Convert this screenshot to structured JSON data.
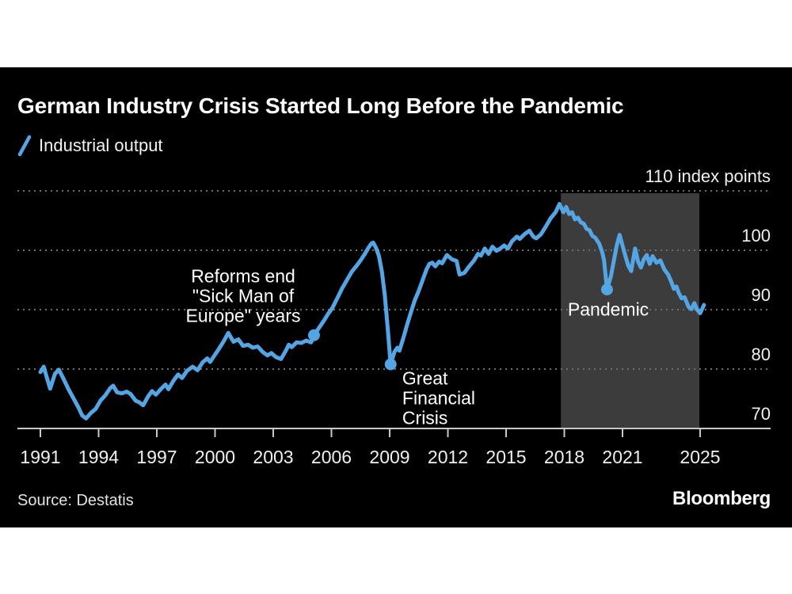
{
  "header": {
    "title": "German Industry Crisis Started Long Before the Pandemic",
    "legend_label": "Industrial output"
  },
  "footer": {
    "source": "Source: Destatis",
    "logo": "Bloomberg"
  },
  "colors": {
    "background": "#000000",
    "page": "#ffffff",
    "line": "#54a5e4",
    "grid": "#6e6e6e",
    "axis": "#c9c9c9",
    "tick_label": "#f0f0f0",
    "annotation": "#ffffff",
    "shaded_band": "#3c3c3c"
  },
  "chart_data": {
    "type": "line",
    "title": "German Industry Crisis Started Long Before the Pandemic",
    "ylabel": "index points",
    "ylim": [
      70,
      110
    ],
    "xlim": [
      1991,
      2025.3
    ],
    "grid": "dotted-horizontal",
    "legend_position": "top-left",
    "x_ticks": [
      {
        "year": 1991,
        "label": "1991"
      },
      {
        "year": 1994,
        "label": "1994"
      },
      {
        "year": 1997,
        "label": "1997"
      },
      {
        "year": 2000,
        "label": "2000"
      },
      {
        "year": 2003,
        "label": "2003"
      },
      {
        "year": 2006,
        "label": "2006"
      },
      {
        "year": 2009,
        "label": "2009"
      },
      {
        "year": 2012,
        "label": "2012"
      },
      {
        "year": 2015,
        "label": "2015"
      },
      {
        "year": 2018,
        "label": "2018"
      },
      {
        "year": 2021,
        "label": "2021"
      },
      {
        "year": 2025,
        "label": "2025"
      }
    ],
    "y_ticks": [
      {
        "value": 110,
        "label": "110 index points"
      },
      {
        "value": 100,
        "label": "100"
      },
      {
        "value": 90,
        "label": "90"
      },
      {
        "value": 80,
        "label": "80"
      },
      {
        "value": 70,
        "label": "70"
      }
    ],
    "y_gridline_values": [
      110,
      100,
      90,
      80
    ],
    "baseline_value": 70,
    "shaded_region": {
      "x_start_year": 2017.82,
      "x_end_year": 2024.96
    },
    "annotations": [
      {
        "id": "reforms",
        "align": "middle",
        "x_year": 2001.45,
        "y_value": 95.7,
        "lines": [
          "Reforms end",
          "\"Sick Man of",
          "Europe\" years"
        ]
      },
      {
        "id": "gfc",
        "align": "start",
        "x_year": 2009.65,
        "y_value": 78.5,
        "lines": [
          "Great",
          "Financial",
          "Crisis"
        ]
      },
      {
        "id": "pandemic",
        "align": "start",
        "x_year": 2018.18,
        "y_value": 90.1,
        "lines": [
          "Pandemic"
        ]
      }
    ],
    "markers": [
      {
        "x_year": 2005.1,
        "y_value": 85.7,
        "name": "reforms-marker-dot"
      },
      {
        "x_year": 2009.05,
        "y_value": 80.8,
        "name": "gfc-marker-dot"
      },
      {
        "x_year": 2020.2,
        "y_value": 93.4,
        "name": "pandemic-marker-dot"
      }
    ],
    "series": [
      {
        "name": "Industrial output",
        "points": [
          [
            1991.0,
            79.5
          ],
          [
            1991.17,
            80.4
          ],
          [
            1991.33,
            78.6
          ],
          [
            1991.5,
            76.7
          ],
          [
            1991.75,
            79.2
          ],
          [
            1991.95,
            79.9
          ],
          [
            1992.2,
            78.3
          ],
          [
            1992.45,
            76.6
          ],
          [
            1992.7,
            75.1
          ],
          [
            1992.95,
            73.6
          ],
          [
            1993.15,
            72.2
          ],
          [
            1993.35,
            71.7
          ],
          [
            1993.6,
            72.6
          ],
          [
            1993.85,
            73.3
          ],
          [
            1994.1,
            74.7
          ],
          [
            1994.35,
            75.6
          ],
          [
            1994.6,
            76.8
          ],
          [
            1994.75,
            77.2
          ],
          [
            1994.95,
            76.1
          ],
          [
            1995.2,
            75.9
          ],
          [
            1995.45,
            76.2
          ],
          [
            1995.65,
            75.8
          ],
          [
            1995.9,
            74.7
          ],
          [
            1996.1,
            74.4
          ],
          [
            1996.3,
            73.9
          ],
          [
            1996.55,
            75.4
          ],
          [
            1996.75,
            76.3
          ],
          [
            1996.95,
            75.7
          ],
          [
            1997.2,
            76.6
          ],
          [
            1997.45,
            77.4
          ],
          [
            1997.6,
            76.6
          ],
          [
            1997.85,
            78.0
          ],
          [
            1998.1,
            79.1
          ],
          [
            1998.3,
            78.5
          ],
          [
            1998.55,
            79.7
          ],
          [
            1998.85,
            80.4
          ],
          [
            1999.1,
            79.8
          ],
          [
            1999.35,
            81.1
          ],
          [
            1999.6,
            81.8
          ],
          [
            1999.75,
            81.2
          ],
          [
            1999.95,
            82.2
          ],
          [
            2000.2,
            83.4
          ],
          [
            2000.45,
            84.7
          ],
          [
            2000.68,
            86.1
          ],
          [
            2000.95,
            84.6
          ],
          [
            2001.2,
            85.0
          ],
          [
            2001.45,
            83.9
          ],
          [
            2001.7,
            84.1
          ],
          [
            2001.95,
            83.6
          ],
          [
            2002.2,
            83.8
          ],
          [
            2002.45,
            82.9
          ],
          [
            2002.7,
            82.3
          ],
          [
            2002.9,
            82.7
          ],
          [
            2003.15,
            82.0
          ],
          [
            2003.4,
            81.7
          ],
          [
            2003.65,
            83.1
          ],
          [
            2003.8,
            84.1
          ],
          [
            2003.95,
            83.7
          ],
          [
            2004.2,
            84.5
          ],
          [
            2004.45,
            84.4
          ],
          [
            2004.7,
            84.8
          ],
          [
            2004.95,
            84.5
          ],
          [
            2005.1,
            85.7
          ],
          [
            2005.35,
            86.9
          ],
          [
            2005.6,
            88.1
          ],
          [
            2005.85,
            89.4
          ],
          [
            2006.05,
            90.3
          ],
          [
            2006.3,
            91.9
          ],
          [
            2006.55,
            93.6
          ],
          [
            2006.8,
            95.0
          ],
          [
            2007.05,
            96.4
          ],
          [
            2007.3,
            97.4
          ],
          [
            2007.5,
            98.3
          ],
          [
            2007.7,
            99.3
          ],
          [
            2007.9,
            100.4
          ],
          [
            2008.05,
            101.1
          ],
          [
            2008.15,
            101.3
          ],
          [
            2008.3,
            100.4
          ],
          [
            2008.45,
            99.0
          ],
          [
            2008.6,
            96.4
          ],
          [
            2008.75,
            92.4
          ],
          [
            2008.9,
            86.8
          ],
          [
            2009.05,
            80.8
          ],
          [
            2009.25,
            82.9
          ],
          [
            2009.4,
            83.6
          ],
          [
            2009.5,
            83.1
          ],
          [
            2009.7,
            85.2
          ],
          [
            2009.9,
            87.5
          ],
          [
            2010.1,
            89.6
          ],
          [
            2010.3,
            91.6
          ],
          [
            2010.5,
            93.2
          ],
          [
            2010.7,
            95.0
          ],
          [
            2010.9,
            96.8
          ],
          [
            2011.05,
            97.7
          ],
          [
            2011.2,
            97.9
          ],
          [
            2011.35,
            97.3
          ],
          [
            2011.55,
            98.1
          ],
          [
            2011.7,
            97.8
          ],
          [
            2011.95,
            99.2
          ],
          [
            2012.2,
            98.5
          ],
          [
            2012.45,
            98.2
          ],
          [
            2012.6,
            95.9
          ],
          [
            2012.85,
            96.2
          ],
          [
            2013.1,
            97.3
          ],
          [
            2013.35,
            98.3
          ],
          [
            2013.55,
            99.4
          ],
          [
            2013.7,
            99.1
          ],
          [
            2013.9,
            100.3
          ],
          [
            2014.1,
            99.4
          ],
          [
            2014.3,
            100.6
          ],
          [
            2014.5,
            99.9
          ],
          [
            2014.7,
            100.3
          ],
          [
            2014.9,
            100.8
          ],
          [
            2015.1,
            100.3
          ],
          [
            2015.3,
            101.5
          ],
          [
            2015.55,
            102.3
          ],
          [
            2015.7,
            101.9
          ],
          [
            2015.95,
            102.7
          ],
          [
            2016.2,
            103.3
          ],
          [
            2016.4,
            102.3
          ],
          [
            2016.55,
            102.0
          ],
          [
            2016.8,
            102.7
          ],
          [
            2017.05,
            104.0
          ],
          [
            2017.3,
            105.4
          ],
          [
            2017.55,
            106.4
          ],
          [
            2017.75,
            107.8
          ],
          [
            2017.95,
            106.4
          ],
          [
            2018.1,
            107.3
          ],
          [
            2018.25,
            106.1
          ],
          [
            2018.4,
            106.4
          ],
          [
            2018.55,
            105.2
          ],
          [
            2018.7,
            105.5
          ],
          [
            2018.85,
            104.7
          ],
          [
            2019.0,
            104.5
          ],
          [
            2019.15,
            103.6
          ],
          [
            2019.3,
            103.4
          ],
          [
            2019.45,
            102.4
          ],
          [
            2019.6,
            102.1
          ],
          [
            2019.8,
            101.1
          ],
          [
            2019.95,
            99.7
          ],
          [
            2020.05,
            98.3
          ],
          [
            2020.2,
            93.4
          ],
          [
            2020.4,
            95.6
          ],
          [
            2020.55,
            98.2
          ],
          [
            2020.7,
            100.8
          ],
          [
            2020.85,
            102.6
          ],
          [
            2021.0,
            100.8
          ],
          [
            2021.15,
            99.0
          ],
          [
            2021.3,
            97.4
          ],
          [
            2021.45,
            96.5
          ],
          [
            2021.55,
            98.5
          ],
          [
            2021.65,
            100.3
          ],
          [
            2021.8,
            98.1
          ],
          [
            2021.95,
            97.1
          ],
          [
            2022.1,
            98.5
          ],
          [
            2022.25,
            99.2
          ],
          [
            2022.4,
            97.7
          ],
          [
            2022.55,
            99.0
          ],
          [
            2022.75,
            97.9
          ],
          [
            2022.95,
            98.3
          ],
          [
            2023.15,
            96.8
          ],
          [
            2023.35,
            95.9
          ],
          [
            2023.5,
            94.8
          ],
          [
            2023.65,
            93.5
          ],
          [
            2023.78,
            93.9
          ],
          [
            2023.9,
            92.8
          ],
          [
            2024.05,
            91.9
          ],
          [
            2024.2,
            92.1
          ],
          [
            2024.4,
            90.5
          ],
          [
            2024.55,
            90.1
          ],
          [
            2024.7,
            91.1
          ],
          [
            2024.85,
            90.0
          ],
          [
            2025.0,
            89.4
          ],
          [
            2025.2,
            90.8
          ]
        ]
      }
    ]
  }
}
